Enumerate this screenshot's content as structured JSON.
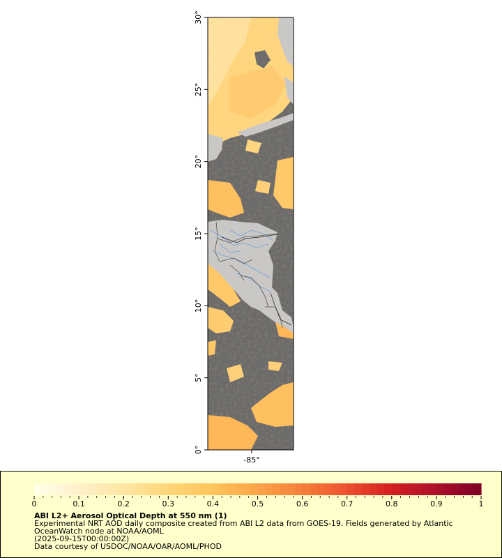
{
  "map": {
    "lat_ticks": [
      "0°",
      "5°",
      "10°",
      "15°",
      "20°",
      "25°",
      "30°"
    ],
    "lon_ticks": [
      "-85°"
    ],
    "lat_range": [
      0,
      30
    ],
    "colors": {
      "ocean_nodata": "#6b6b6b",
      "land": "#c8c8c8",
      "rivers": "#6f9fdc",
      "borders": "#555555"
    }
  },
  "legend": {
    "title": "ABI L2+ Aerosol Optical Depth at 550 nm (1)",
    "description_line1": "Experimental NRT AOD daily composite created from ABI L2 data from GOES-19. Fields generated by Atlantic",
    "description_line2": "OceanWatch node at NOAA/AOML",
    "time": "(2025-09-15T00:00:00Z)",
    "credit": "Data courtesy of USDOC/NOAA/OAR/AOML/PHOD",
    "ticks": [
      "0",
      "0.1",
      "0.2",
      "0.3",
      "0.4",
      "0.5",
      "0.6",
      "0.7",
      "0.8",
      "0.9",
      "1"
    ],
    "range": [
      0,
      1
    ],
    "colors": [
      "#ffffe6",
      "#fff0c8",
      "#ffe5a0",
      "#ffd578",
      "#ffc45a",
      "#fca44a",
      "#f7803a",
      "#ed5330",
      "#d42020",
      "#b0102a",
      "#800026"
    ]
  }
}
